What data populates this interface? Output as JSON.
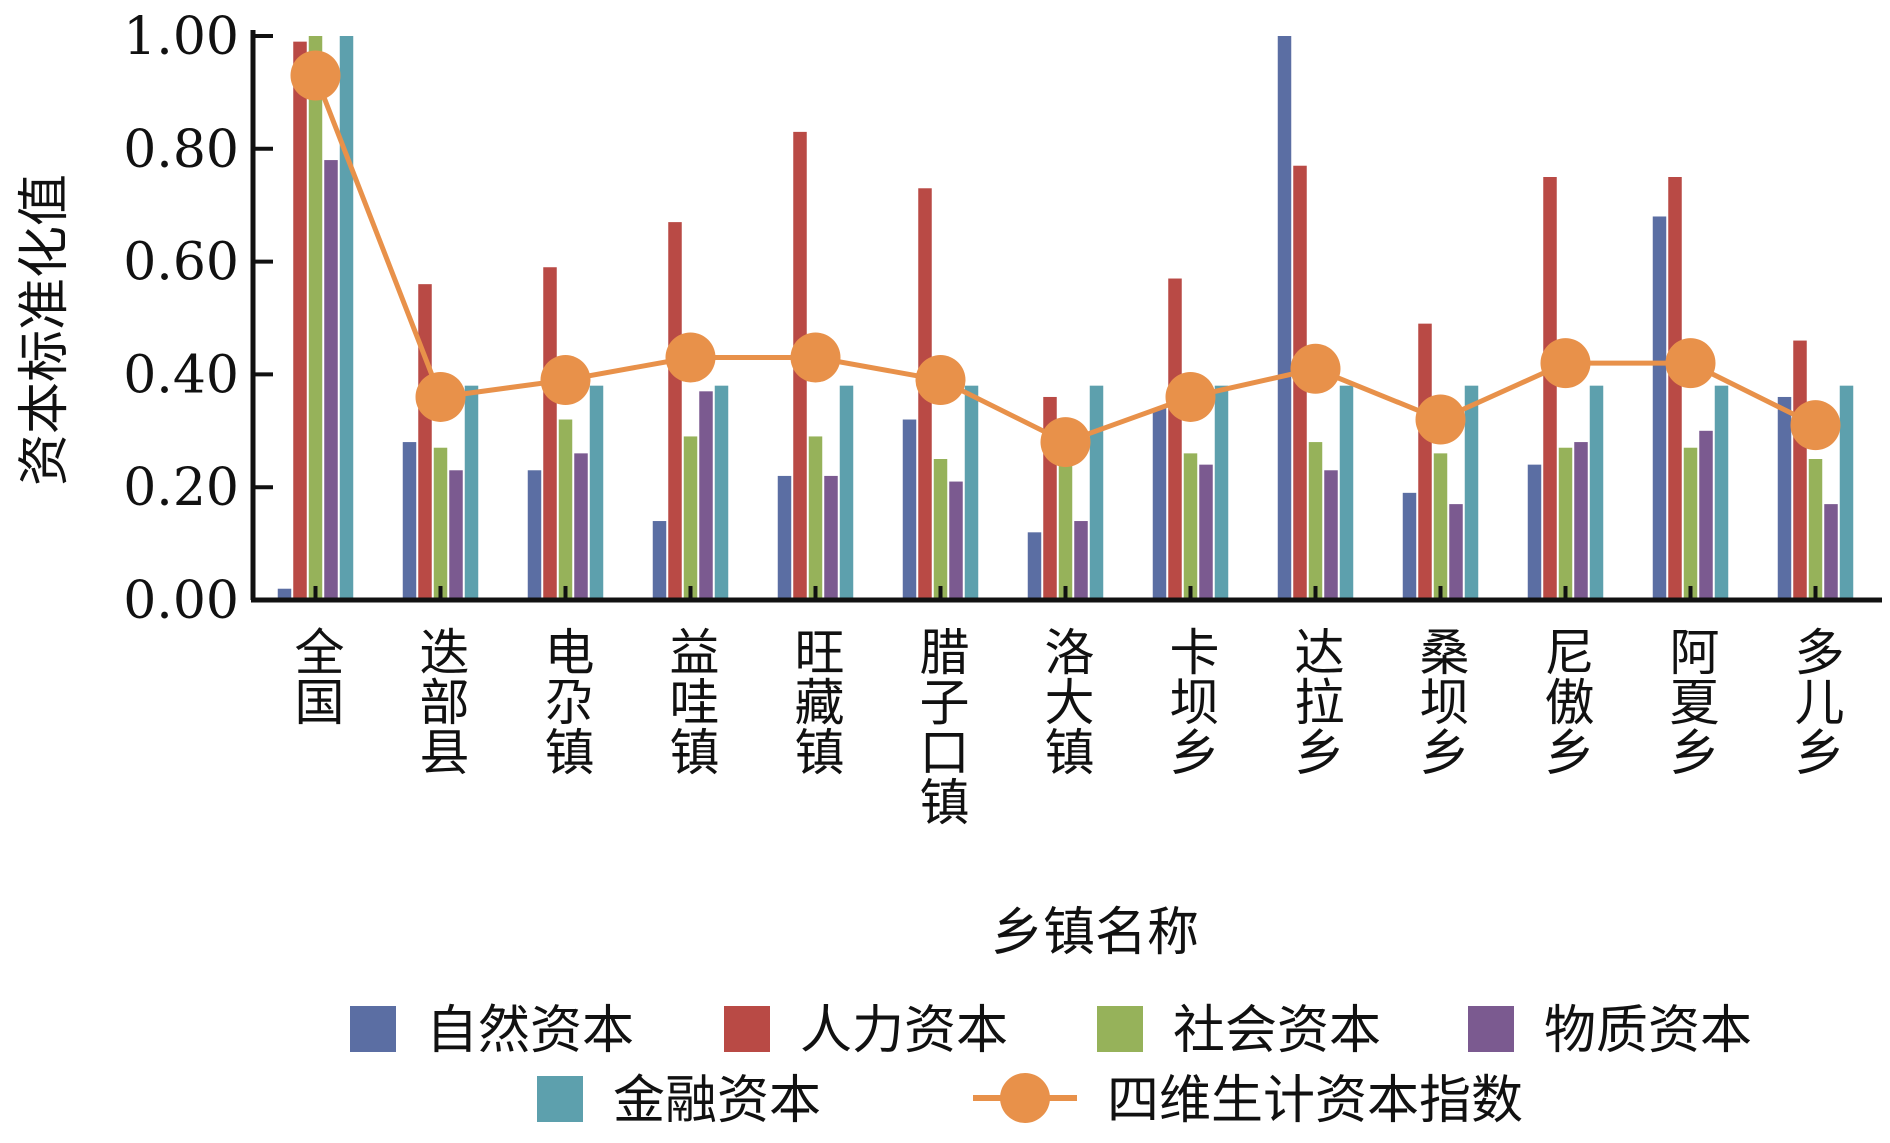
{
  "chart_data": {
    "type": "bar",
    "xlabel": "乡镇名称",
    "ylabel": "资本标准化值",
    "ylim": [
      0,
      1
    ],
    "yticks": [
      "0.00",
      "0.20",
      "0.40",
      "0.60",
      "0.80",
      "1.00"
    ],
    "ytick_values": [
      0,
      0.2,
      0.4,
      0.6,
      0.8,
      1.0
    ],
    "grid": false,
    "legend_position": "bottom",
    "categories": [
      "全国",
      "迭部县",
      "电尕镇",
      "益哇镇",
      "旺藏镇",
      "腊子口镇",
      "洛大镇",
      "卡坝乡",
      "达拉乡",
      "桑坝乡",
      "尼傲乡",
      "阿夏乡",
      "多儿乡"
    ],
    "series": [
      {
        "name": "自然资本",
        "color": "#5b6ea3",
        "values": [
          0.02,
          0.28,
          0.23,
          0.14,
          0.22,
          0.32,
          0.12,
          0.34,
          1.0,
          0.19,
          0.24,
          0.68,
          0.36
        ]
      },
      {
        "name": "人力资本",
        "color": "#b94a45",
        "values": [
          0.99,
          0.56,
          0.59,
          0.67,
          0.83,
          0.73,
          0.36,
          0.57,
          0.77,
          0.49,
          0.75,
          0.75,
          0.46
        ]
      },
      {
        "name": "社会资本",
        "color": "#96b25a",
        "values": [
          1.0,
          0.27,
          0.32,
          0.29,
          0.29,
          0.25,
          0.26,
          0.26,
          0.28,
          0.26,
          0.27,
          0.27,
          0.25
        ]
      },
      {
        "name": "物质资本",
        "color": "#7b5a90",
        "values": [
          0.78,
          0.23,
          0.26,
          0.37,
          0.22,
          0.21,
          0.14,
          0.24,
          0.23,
          0.17,
          0.28,
          0.3,
          0.17
        ]
      },
      {
        "name": "金融资本",
        "color": "#5da0ad",
        "values": [
          1.0,
          0.38,
          0.38,
          0.38,
          0.38,
          0.38,
          0.38,
          0.38,
          0.38,
          0.38,
          0.38,
          0.38,
          0.38
        ]
      }
    ],
    "line_series": {
      "name": "四维生计资本指数",
      "color": "#e8914a",
      "values": [
        0.93,
        0.36,
        0.39,
        0.43,
        0.43,
        0.39,
        0.28,
        0.36,
        0.41,
        0.32,
        0.42,
        0.42,
        0.31
      ]
    }
  }
}
